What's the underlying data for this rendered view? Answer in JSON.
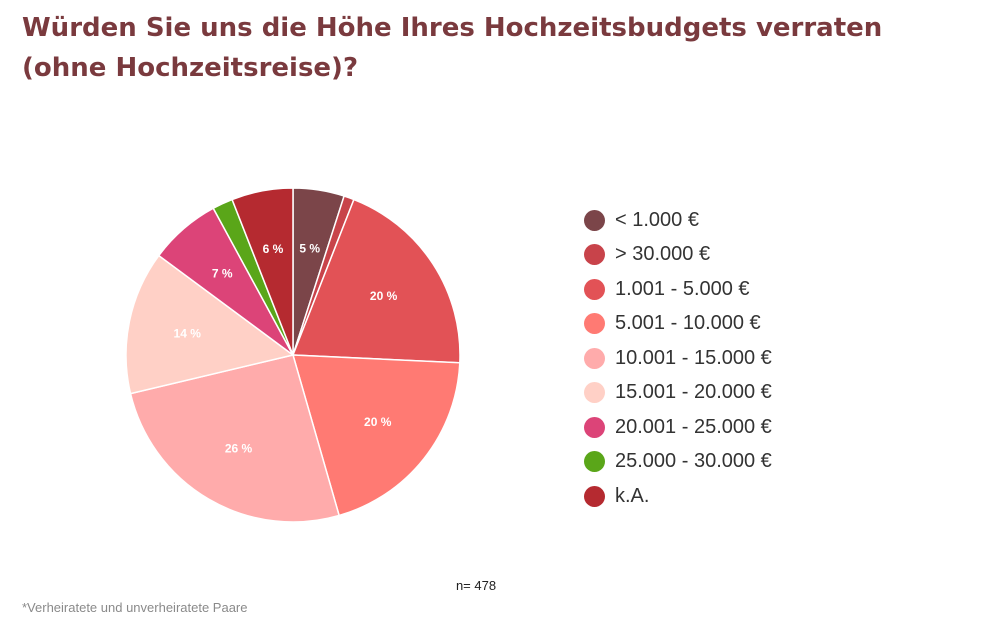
{
  "title": "Würden Sie uns die Höhe Ihres Hochzeitsbudgets verraten (ohne Hochzeitsreise)?",
  "sample_size_label": "n= 478",
  "footnote": "*Verheiratete und unverheiratete Paare",
  "chart_data": {
    "type": "pie",
    "title": "Würden Sie uns die Höhe Ihres Hochzeitsbudgets verraten (ohne Hochzeitsreise)?",
    "legend_position": "right",
    "start_angle_deg": 0,
    "direction": "clockwise",
    "slices": [
      {
        "label": "< 1.000 €",
        "value": 5,
        "display": "5 %",
        "color": "#7b4549"
      },
      {
        "label": "> 30.000 €",
        "value": 1,
        "display": "",
        "color": "#c8434a"
      },
      {
        "label": "1.001 - 5.000 €",
        "value": 20,
        "display": "20 %",
        "color": "#e25256"
      },
      {
        "label": "5.001 - 10.000 €",
        "value": 20,
        "display": "20 %",
        "color": "#ff7a73"
      },
      {
        "label": "10.001 - 15.000 €",
        "value": 26,
        "display": "26 %",
        "color": "#ffabab"
      },
      {
        "label": "15.001 - 20.000 €",
        "value": 14,
        "display": "14 %",
        "color": "#ffd0c6"
      },
      {
        "label": "20.001 - 25.000 €",
        "value": 7,
        "display": "7 %",
        "color": "#dc4478"
      },
      {
        "label": "25.000 - 30.000 €",
        "value": 2,
        "display": "",
        "color": "#5aa619"
      },
      {
        "label": "k.A.",
        "value": 6,
        "display": "6 %",
        "color": "#b52a30"
      }
    ]
  }
}
